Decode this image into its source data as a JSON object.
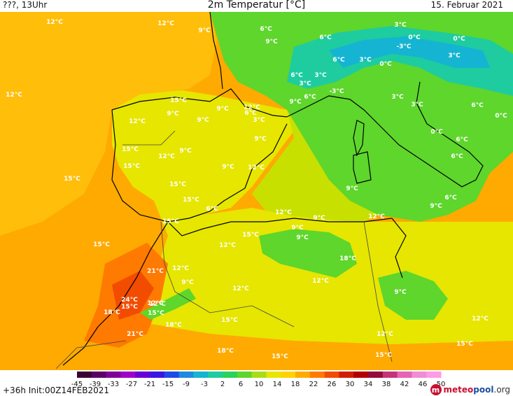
{
  "header": {
    "left": "???, 13Uhr",
    "center": "2m Temperatur [°C]",
    "right": "15. Februar 2021"
  },
  "footer": {
    "run_info": "+36h Init:00Z14FEB2021",
    "brand_part1": "meteo",
    "brand_part2": "pool",
    "brand_part3": ".org",
    "brand_logo": "m"
  },
  "legend": {
    "ticks": [
      "-45",
      "-39",
      "-33",
      "-27",
      "-21",
      "-15",
      "-9",
      "-3",
      "2",
      "6",
      "10",
      "14",
      "18",
      "22",
      "26",
      "30",
      "34",
      "38",
      "42",
      "46",
      "50"
    ],
    "colors": [
      "#3a0033",
      "#5a0066",
      "#80009a",
      "#a000c8",
      "#6a00d8",
      "#3c14e6",
      "#1f4be6",
      "#1f8ae0",
      "#14b4d2",
      "#1ecca0",
      "#2ad25a",
      "#5ed62c",
      "#a8dc14",
      "#e6e600",
      "#ffd200",
      "#ffaa00",
      "#ff7a00",
      "#f24c00",
      "#d21e00",
      "#b40000",
      "#960a3c",
      "#c8327a",
      "#e664b4",
      "#f08cd2",
      "#ff9ae6"
    ]
  },
  "temperature_labels": [
    {
      "text": "12°C"
    },
    {
      "text": "12°C"
    },
    {
      "text": "9°C"
    },
    {
      "text": "6°C"
    },
    {
      "text": "9°C"
    },
    {
      "text": "6°C"
    },
    {
      "text": "3°C"
    },
    {
      "text": "0°C"
    },
    {
      "text": "-3°C"
    },
    {
      "text": "0°C"
    },
    {
      "text": "3°C"
    },
    {
      "text": "0°C"
    },
    {
      "text": "3°C"
    },
    {
      "text": "6°C"
    },
    {
      "text": "3°C"
    },
    {
      "text": "3°C"
    },
    {
      "text": "6°C"
    },
    {
      "text": "-3°C"
    },
    {
      "text": "12°C"
    },
    {
      "text": "15°C"
    },
    {
      "text": "9°C"
    },
    {
      "text": "9°C"
    },
    {
      "text": "9°C"
    },
    {
      "text": "12°C"
    },
    {
      "text": "6°C"
    },
    {
      "text": "3°C"
    },
    {
      "text": "9°C"
    },
    {
      "text": "6°C"
    },
    {
      "text": "3°C"
    },
    {
      "text": "3°C"
    },
    {
      "text": "6°C"
    },
    {
      "text": "0°C"
    },
    {
      "text": "12°C"
    },
    {
      "text": "9°C"
    },
    {
      "text": "0°C"
    },
    {
      "text": "6°C"
    },
    {
      "text": "15°C"
    },
    {
      "text": "12°C"
    },
    {
      "text": "9°C"
    },
    {
      "text": "6°C"
    },
    {
      "text": "15°C"
    },
    {
      "text": "9°C"
    },
    {
      "text": "12°C"
    },
    {
      "text": "15°C"
    },
    {
      "text": "15°C"
    },
    {
      "text": "9°C"
    },
    {
      "text": "15°C"
    },
    {
      "text": "6°C"
    },
    {
      "text": "15°C"
    },
    {
      "text": "12°C"
    },
    {
      "text": "9°C"
    },
    {
      "text": "12°C"
    },
    {
      "text": "6°C"
    },
    {
      "text": "9°C"
    },
    {
      "text": "15°C"
    },
    {
      "text": "9°C"
    },
    {
      "text": "9°C"
    },
    {
      "text": "15°C"
    },
    {
      "text": "12°C"
    },
    {
      "text": "18°C"
    },
    {
      "text": "12°C"
    },
    {
      "text": "21°C"
    },
    {
      "text": "12°C"
    },
    {
      "text": "9°C"
    },
    {
      "text": "12°C"
    },
    {
      "text": "12°C"
    },
    {
      "text": "9°C"
    },
    {
      "text": "24°C"
    },
    {
      "text": "15°C"
    },
    {
      "text": "12°C"
    },
    {
      "text": "18°C"
    },
    {
      "text": "15°C"
    },
    {
      "text": "18°C"
    },
    {
      "text": "15°C"
    },
    {
      "text": "12°C"
    },
    {
      "text": "21°C"
    },
    {
      "text": "12°C"
    },
    {
      "text": "15°C"
    },
    {
      "text": "18°C"
    },
    {
      "text": "15°C"
    },
    {
      "text": "15°C"
    }
  ]
}
